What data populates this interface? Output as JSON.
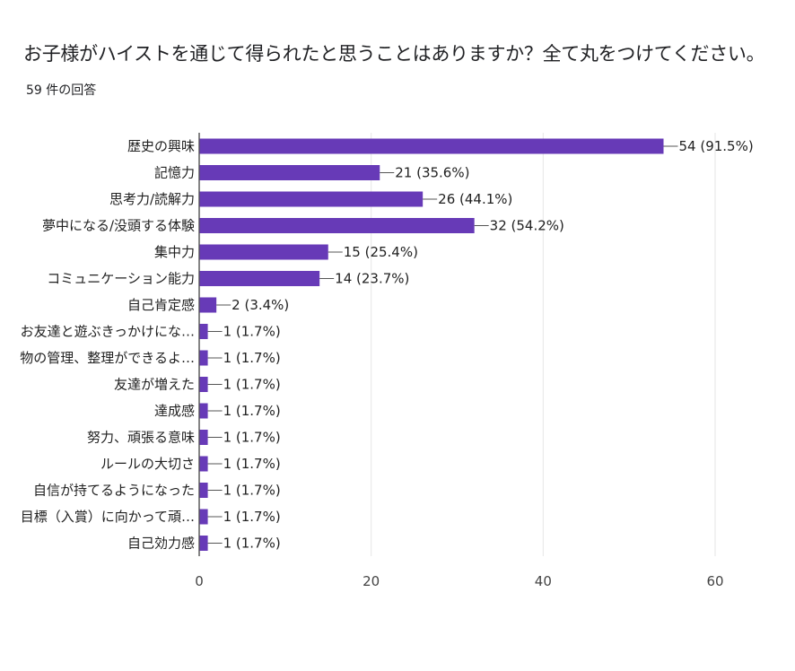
{
  "page": {
    "title": "お子様がハイストを通じて得られたと思うことはありますか？全て丸をつけてください。",
    "response_count": "59 件の回答"
  },
  "chart_data": {
    "type": "bar",
    "orientation": "horizontal",
    "title": "",
    "xlabel": "",
    "ylabel": "",
    "xlim": [
      0,
      60
    ],
    "x_ticks": [
      0,
      20,
      40,
      60
    ],
    "bar_color": "#673ab7",
    "grid": true,
    "categories": [
      "歴史の興味",
      "記憶力",
      "思考力/読解力",
      "夢中になる/没頭する体験",
      "集中力",
      "コミュニケーション能力",
      "自己肯定感",
      "お友達と遊ぶきっかけにな…",
      "物の管理、整理ができるよ…",
      "友達が増えた",
      "達成感",
      "努力、頑張る意味",
      "ルールの大切さ",
      "自信が持てるようになった",
      "目標（入賞）に向かって頑…",
      "自己効力感"
    ],
    "values": [
      54,
      21,
      26,
      32,
      15,
      14,
      2,
      1,
      1,
      1,
      1,
      1,
      1,
      1,
      1,
      1
    ],
    "data_labels": [
      "54 (91.5%)",
      "21 (35.6%)",
      "26 (44.1%)",
      "32 (54.2%)",
      "15 (25.4%)",
      "14 (23.7%)",
      "2 (3.4%)",
      "1 (1.7%)",
      "1 (1.7%)",
      "1 (1.7%)",
      "1 (1.7%)",
      "1 (1.7%)",
      "1 (1.7%)",
      "1 (1.7%)",
      "1 (1.7%)",
      "1 (1.7%)"
    ]
  }
}
